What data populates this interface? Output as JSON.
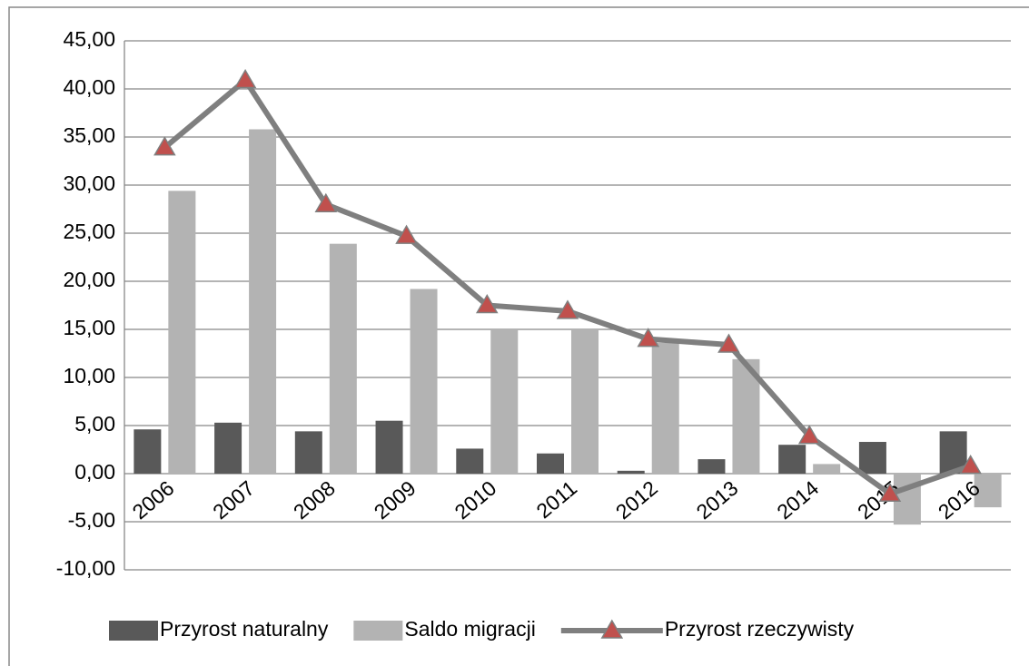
{
  "chart_data": {
    "type": "bar-line",
    "categories": [
      "2006",
      "2007",
      "2008",
      "2009",
      "2010",
      "2011",
      "2012",
      "2013",
      "2014",
      "2015",
      "2016"
    ],
    "series": [
      {
        "name": "Przyrost naturalny",
        "type": "bar",
        "color": "#595959",
        "values": [
          4.6,
          5.3,
          4.4,
          5.5,
          2.6,
          2.1,
          0.3,
          1.5,
          3.0,
          3.3,
          4.4
        ]
      },
      {
        "name": "Saldo migracji",
        "type": "bar",
        "color": "#b3b3b3",
        "values": [
          29.4,
          35.8,
          23.9,
          19.2,
          15.0,
          15.0,
          13.6,
          11.9,
          1.0,
          -5.3,
          -3.5
        ]
      },
      {
        "name": "Przyrost rzeczywisty",
        "type": "line",
        "color": "#7f7f7f",
        "marker_color": "#c0504d",
        "values": [
          33.9,
          40.9,
          28.0,
          24.7,
          17.5,
          16.9,
          14.0,
          13.4,
          3.9,
          -2.1,
          0.8
        ]
      }
    ],
    "ylim": [
      -10,
      45
    ],
    "yticks": [
      {
        "value": -10,
        "label": "-10,00"
      },
      {
        "value": -5,
        "label": "-5,00"
      },
      {
        "value": 0,
        "label": "0,00"
      },
      {
        "value": 5,
        "label": "5,00"
      },
      {
        "value": 10,
        "label": "10,00"
      },
      {
        "value": 15,
        "label": "15,00"
      },
      {
        "value": 20,
        "label": "20,00"
      },
      {
        "value": 25,
        "label": "25,00"
      },
      {
        "value": 30,
        "label": "30,00"
      },
      {
        "value": 35,
        "label": "35,00"
      },
      {
        "value": 40,
        "label": "40,00"
      },
      {
        "value": 45,
        "label": "45,00"
      }
    ],
    "grid": true,
    "legend": "bottom"
  }
}
